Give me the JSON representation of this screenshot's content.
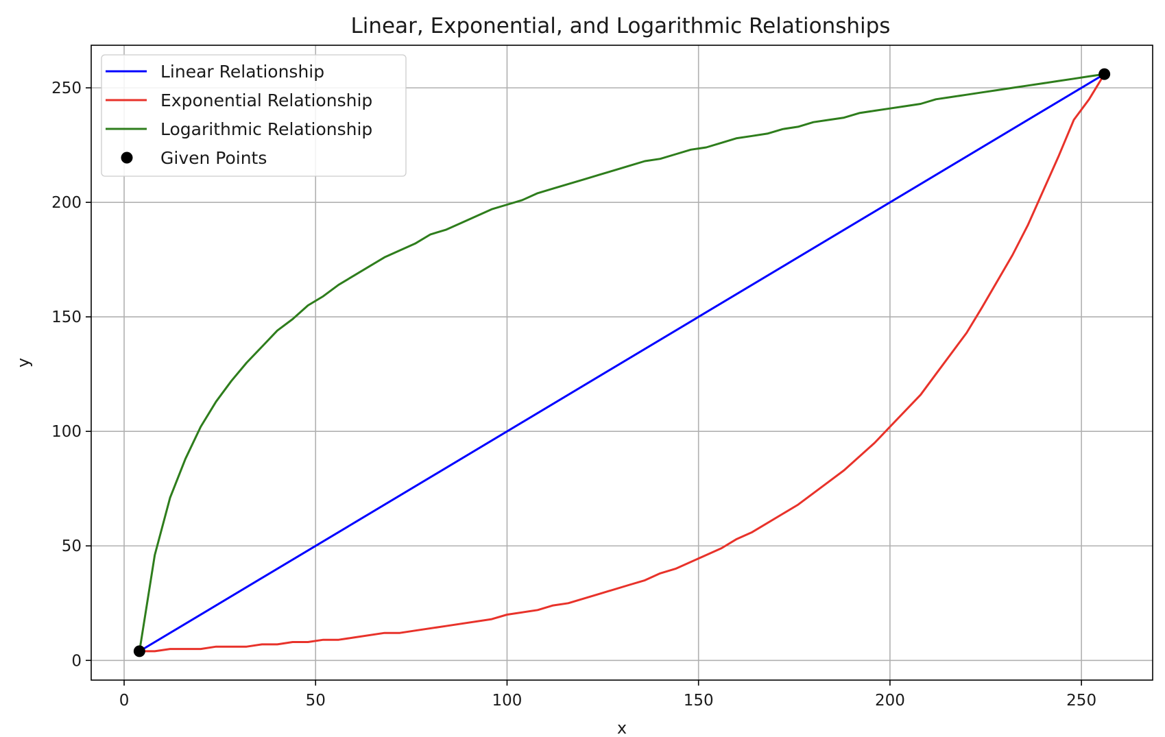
{
  "chart_data": {
    "type": "line",
    "title": "Linear, Exponential, and Logarithmic Relationships",
    "xlabel": "x",
    "ylabel": "y",
    "xlim": [
      -8.6,
      268.6
    ],
    "ylim": [
      -8.6,
      268.6
    ],
    "xticks": [
      0,
      50,
      100,
      150,
      200,
      250
    ],
    "yticks": [
      0,
      50,
      100,
      150,
      200,
      250
    ],
    "xtick_labels": [
      "0",
      "50",
      "100",
      "150",
      "200",
      "250"
    ],
    "ytick_labels": [
      "0",
      "50",
      "100",
      "150",
      "200",
      "250"
    ],
    "grid": true,
    "legend_position": "upper-left",
    "series": [
      {
        "name": "Linear Relationship",
        "color": "#0000ff",
        "kind": "line",
        "x": [
          4,
          256
        ],
        "y": [
          4,
          256
        ]
      },
      {
        "name": "Exponential Relationship",
        "color": "#e8322a",
        "kind": "line",
        "x": [
          4,
          8,
          12,
          20,
          24,
          32,
          36,
          40,
          44,
          48,
          52,
          56,
          60,
          68,
          72,
          76,
          84,
          88,
          96,
          100,
          108,
          112,
          116,
          124,
          132,
          136,
          140,
          144,
          152,
          156,
          160,
          164,
          172,
          176,
          184,
          188,
          196,
          200,
          208,
          212,
          220,
          224,
          232,
          236,
          244,
          248,
          252,
          256
        ],
        "y": [
          4,
          4,
          5,
          5,
          6,
          6,
          7,
          7,
          8,
          8,
          9,
          9,
          10,
          12,
          12,
          13,
          15,
          16,
          18,
          20,
          22,
          24,
          25,
          29,
          33,
          35,
          38,
          40,
          46,
          49,
          53,
          56,
          64,
          68,
          78,
          83,
          95,
          102,
          116,
          125,
          143,
          154,
          177,
          190,
          220,
          236,
          245,
          256
        ]
      },
      {
        "name": "Logarithmic Relationship",
        "color": "#2e7d1c",
        "kind": "line",
        "x": [
          4,
          8,
          12,
          16,
          20,
          24,
          28,
          32,
          36,
          40,
          44,
          48,
          52,
          56,
          60,
          64,
          68,
          72,
          76,
          80,
          84,
          88,
          92,
          96,
          100,
          104,
          108,
          112,
          116,
          120,
          124,
          128,
          132,
          136,
          140,
          144,
          148,
          152,
          156,
          160,
          164,
          168,
          172,
          176,
          180,
          184,
          188,
          192,
          196,
          200,
          204,
          208,
          212,
          216,
          220,
          224,
          228,
          232,
          236,
          240,
          244,
          248,
          252,
          256
        ],
        "y": [
          4,
          46,
          71,
          88,
          102,
          113,
          122,
          130,
          137,
          144,
          149,
          155,
          159,
          164,
          168,
          172,
          176,
          179,
          182,
          186,
          188,
          191,
          194,
          197,
          199,
          201,
          204,
          206,
          208,
          210,
          212,
          214,
          216,
          218,
          219,
          221,
          223,
          224,
          226,
          228,
          229,
          230,
          232,
          233,
          235,
          236,
          237,
          239,
          240,
          241,
          242,
          243,
          245,
          246,
          247,
          248,
          249,
          250,
          251,
          252,
          253,
          254,
          255,
          256
        ]
      },
      {
        "name": "Given Points",
        "color": "#000000",
        "kind": "scatter",
        "x": [
          4,
          256
        ],
        "y": [
          4,
          256
        ]
      }
    ]
  }
}
